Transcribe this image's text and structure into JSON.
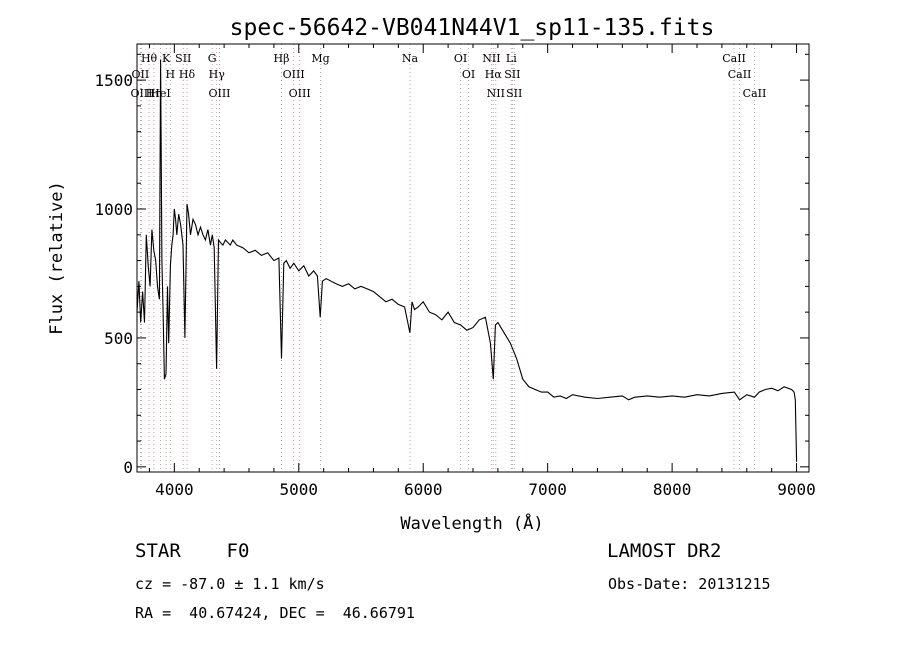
{
  "chart_data": {
    "type": "line",
    "title": "spec-56642-VB041N44V1_sp11-135.fits",
    "xlabel": "Wavelength (Å)",
    "ylabel": "Flux (relative)",
    "xlim": [
      3700,
      9100
    ],
    "ylim": [
      -20,
      1640
    ],
    "xticks": [
      4000,
      5000,
      6000,
      7000,
      8000,
      9000
    ],
    "yticks": [
      0,
      500,
      1000,
      1500
    ],
    "grid": false,
    "line_color": "#000000",
    "series": [
      {
        "name": "",
        "x": [
          3700,
          3715,
          3730,
          3745,
          3760,
          3775,
          3790,
          3805,
          3820,
          3835,
          3850,
          3865,
          3880,
          3890,
          3900,
          3910,
          3920,
          3933,
          3945,
          3955,
          3968,
          3980,
          3990,
          4000,
          4010,
          4020,
          4035,
          4050,
          4070,
          4085,
          4102,
          4115,
          4130,
          4150,
          4170,
          4190,
          4210,
          4230,
          4250,
          4270,
          4290,
          4305,
          4320,
          4340,
          4355,
          4370,
          4390,
          4410,
          4430,
          4450,
          4470,
          4500,
          4550,
          4600,
          4650,
          4700,
          4750,
          4800,
          4840,
          4861,
          4880,
          4900,
          4930,
          4960,
          5000,
          5040,
          5080,
          5120,
          5150,
          5172,
          5190,
          5220,
          5260,
          5300,
          5350,
          5400,
          5450,
          5500,
          5550,
          5600,
          5650,
          5700,
          5750,
          5800,
          5850,
          5893,
          5910,
          5930,
          5960,
          6000,
          6050,
          6100,
          6150,
          6200,
          6250,
          6300,
          6350,
          6400,
          6450,
          6500,
          6540,
          6563,
          6580,
          6600,
          6650,
          6700,
          6750,
          6800,
          6850,
          6900,
          6950,
          7000,
          7050,
          7100,
          7150,
          7200,
          7300,
          7400,
          7500,
          7600,
          7650,
          7700,
          7800,
          7900,
          8000,
          8100,
          8200,
          8300,
          8400,
          8500,
          8542,
          8600,
          8662,
          8700,
          8750,
          8800,
          8850,
          8900,
          8960,
          8980,
          8990,
          9000
        ],
        "y": [
          600,
          720,
          560,
          680,
          560,
          900,
          780,
          700,
          920,
          840,
          800,
          700,
          650,
          1580,
          800,
          600,
          340,
          360,
          700,
          480,
          780,
          860,
          900,
          1000,
          960,
          900,
          980,
          940,
          860,
          500,
          1020,
          980,
          900,
          960,
          940,
          900,
          930,
          900,
          880,
          920,
          860,
          900,
          850,
          380,
          880,
          870,
          860,
          880,
          870,
          860,
          880,
          860,
          850,
          830,
          840,
          820,
          830,
          800,
          810,
          420,
          790,
          800,
          770,
          790,
          760,
          780,
          740,
          760,
          740,
          580,
          720,
          730,
          720,
          710,
          700,
          710,
          690,
          700,
          690,
          680,
          660,
          640,
          650,
          630,
          620,
          520,
          640,
          610,
          620,
          640,
          600,
          590,
          570,
          600,
          560,
          550,
          530,
          540,
          570,
          580,
          480,
          340,
          550,
          560,
          520,
          480,
          420,
          340,
          310,
          300,
          290,
          290,
          270,
          275,
          265,
          280,
          270,
          265,
          270,
          275,
          260,
          270,
          275,
          270,
          275,
          270,
          280,
          275,
          285,
          290,
          260,
          280,
          270,
          290,
          300,
          305,
          295,
          310,
          300,
          290,
          260,
          20
        ]
      }
    ],
    "line_ids": [
      {
        "x": 3797,
        "label": "Hθ"
      },
      {
        "x": 3727,
        "label": "OII"
      },
      {
        "x": 3736,
        "label": "OIII"
      },
      {
        "x": 3835,
        "label": "Hη"
      },
      {
        "x": 3889,
        "label": "HeI"
      },
      {
        "x": 3934,
        "label": "K"
      },
      {
        "x": 3968,
        "label": "H"
      },
      {
        "x": 4072,
        "label": "SII"
      },
      {
        "x": 4102,
        "label": "Hδ"
      },
      {
        "x": 4304,
        "label": "G"
      },
      {
        "x": 4341,
        "label": "Hγ"
      },
      {
        "x": 4363,
        "label": "OIII"
      },
      {
        "x": 4861,
        "label": "Hβ"
      },
      {
        "x": 4959,
        "label": "OIII"
      },
      {
        "x": 5007,
        "label": "OIII"
      },
      {
        "x": 5175,
        "label": "Mg"
      },
      {
        "x": 5893,
        "label": "Na"
      },
      {
        "x": 6300,
        "label": "OI"
      },
      {
        "x": 6364,
        "label": "OI"
      },
      {
        "x": 6548,
        "label": "NII"
      },
      {
        "x": 6563,
        "label": "Hα"
      },
      {
        "x": 6583,
        "label": "NII"
      },
      {
        "x": 6708,
        "label": "Li"
      },
      {
        "x": 6716,
        "label": "SII"
      },
      {
        "x": 6731,
        "label": "SII"
      },
      {
        "x": 8498,
        "label": "CaII"
      },
      {
        "x": 8542,
        "label": "CaII"
      },
      {
        "x": 8662,
        "label": "CaII"
      }
    ]
  },
  "info": {
    "object_class": "STAR    F0",
    "survey": "LAMOST DR2",
    "redshift": "cz = -87.0 ± 1.1 km/s",
    "obs_date": "Obs-Date: 20131215",
    "coords": "RA =  40.67424, DEC =  46.66791"
  }
}
